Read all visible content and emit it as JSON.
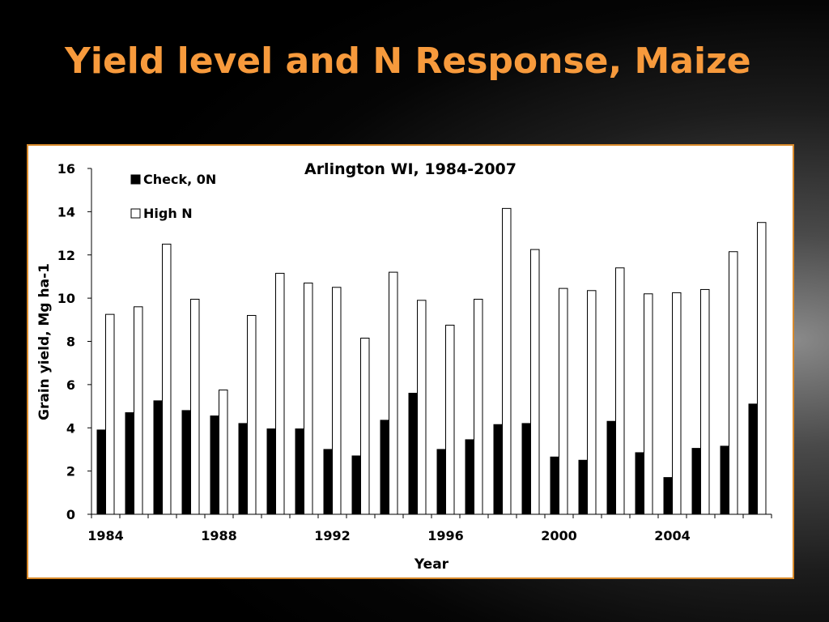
{
  "slide": {
    "title": "Yield level and N Response, Maize"
  },
  "colors": {
    "title": "#f79a3c",
    "panel_border": "#d98a2b",
    "check_bar": "#000000",
    "highn_bar": "#ffffff"
  },
  "chart_data": {
    "type": "bar",
    "title": "Arlington WI, 1984-2007",
    "xlabel": "Year",
    "ylabel": "Grain yield, Mg ha-1",
    "ylim": [
      0,
      16
    ],
    "yticks": [
      0,
      2,
      4,
      6,
      8,
      10,
      12,
      14,
      16
    ],
    "x_tick_labels": [
      "1984",
      "1988",
      "1992",
      "1996",
      "2000",
      "2004"
    ],
    "grid": false,
    "legend_position": "top-left",
    "categories": [
      1984,
      1985,
      1986,
      1987,
      1988,
      1989,
      1990,
      1991,
      1992,
      1993,
      1994,
      1995,
      1996,
      1997,
      1998,
      1999,
      2000,
      2001,
      2002,
      2003,
      2004,
      2005,
      2006,
      2007
    ],
    "series": [
      {
        "name": "Check, 0N",
        "color": "#000000",
        "values": [
          3.9,
          4.7,
          5.25,
          4.8,
          4.55,
          4.2,
          3.95,
          3.95,
          3.0,
          2.7,
          4.35,
          5.6,
          3.0,
          3.45,
          4.15,
          4.2,
          2.65,
          2.5,
          4.3,
          2.85,
          1.7,
          3.05,
          3.15,
          5.1
        ]
      },
      {
        "name": "High N",
        "color": "#ffffff",
        "values": [
          9.25,
          9.6,
          12.5,
          9.95,
          5.75,
          9.2,
          11.15,
          10.7,
          10.5,
          8.15,
          11.2,
          9.9,
          8.75,
          9.95,
          14.15,
          12.25,
          10.45,
          10.35,
          11.4,
          10.2,
          10.25,
          10.4,
          12.15,
          13.5
        ]
      }
    ]
  }
}
